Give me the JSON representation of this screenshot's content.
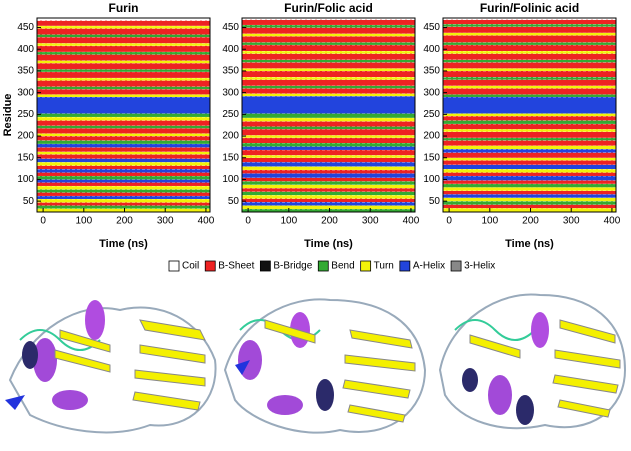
{
  "legend": {
    "names": [
      "Coil",
      "B-Sheet",
      "B-Bridge",
      "Bend",
      "Turn",
      "A-Helix",
      "3-Helix"
    ],
    "colors": [
      "#ffffff",
      "#ee2222",
      "#111111",
      "#33aa33",
      "#f2f20a",
      "#2244dd",
      "#888888"
    ]
  },
  "chart_data": [
    {
      "type": "heatmap",
      "title": "Furin",
      "x_label": "Time (ns)",
      "y_label": "Residue",
      "xlim": [
        -15,
        410
      ],
      "xticks": [
        0,
        100,
        200,
        300,
        400
      ],
      "ylim": [
        25,
        472
      ],
      "yticks": [
        50,
        100,
        150,
        200,
        250,
        300,
        350,
        400,
        450
      ],
      "rows": [
        [
          25,
          33,
          4
        ],
        [
          33,
          40,
          3
        ],
        [
          40,
          47,
          1
        ],
        [
          47,
          55,
          4
        ],
        [
          55,
          62,
          5
        ],
        [
          62,
          70,
          1
        ],
        [
          70,
          77,
          3
        ],
        [
          77,
          85,
          4
        ],
        [
          85,
          93,
          1
        ],
        [
          93,
          100,
          5
        ],
        [
          100,
          108,
          3
        ],
        [
          108,
          116,
          1
        ],
        [
          116,
          124,
          5
        ],
        [
          124,
          132,
          1
        ],
        [
          132,
          140,
          4
        ],
        [
          140,
          148,
          5
        ],
        [
          148,
          158,
          1
        ],
        [
          158,
          164,
          4
        ],
        [
          164,
          174,
          1
        ],
        [
          174,
          182,
          5
        ],
        [
          182,
          190,
          3
        ],
        [
          190,
          200,
          1
        ],
        [
          200,
          206,
          4
        ],
        [
          206,
          218,
          1
        ],
        [
          218,
          224,
          3
        ],
        [
          224,
          236,
          1
        ],
        [
          236,
          244,
          4
        ],
        [
          244,
          252,
          3
        ],
        [
          252,
          290,
          5
        ],
        [
          290,
          296,
          4
        ],
        [
          296,
          308,
          1
        ],
        [
          308,
          314,
          3
        ],
        [
          314,
          328,
          1
        ],
        [
          328,
          334,
          4
        ],
        [
          334,
          348,
          1
        ],
        [
          348,
          354,
          3
        ],
        [
          354,
          368,
          1
        ],
        [
          368,
          374,
          4
        ],
        [
          374,
          388,
          1
        ],
        [
          388,
          394,
          3
        ],
        [
          394,
          408,
          1
        ],
        [
          408,
          414,
          4
        ],
        [
          414,
          428,
          1
        ],
        [
          428,
          434,
          3
        ],
        [
          434,
          448,
          1
        ],
        [
          448,
          454,
          4
        ],
        [
          454,
          466,
          1
        ]
      ]
    },
    {
      "type": "heatmap",
      "title": "Furin/Folic acid",
      "x_label": "Time (ns)",
      "xlim": [
        -15,
        410
      ],
      "xticks": [
        0,
        100,
        200,
        300,
        400
      ],
      "ylim": [
        25,
        472
      ],
      "yticks": [
        50,
        100,
        150,
        200,
        250,
        300,
        350,
        400,
        450
      ],
      "rows": [
        [
          25,
          32,
          3
        ],
        [
          32,
          40,
          4
        ],
        [
          40,
          48,
          5
        ],
        [
          48,
          56,
          1
        ],
        [
          56,
          64,
          4
        ],
        [
          64,
          72,
          3
        ],
        [
          72,
          80,
          1
        ],
        [
          80,
          88,
          4
        ],
        [
          88,
          96,
          3
        ],
        [
          96,
          104,
          1
        ],
        [
          104,
          114,
          5
        ],
        [
          114,
          122,
          1
        ],
        [
          122,
          130,
          4
        ],
        [
          130,
          140,
          5
        ],
        [
          140,
          150,
          1
        ],
        [
          150,
          156,
          4
        ],
        [
          156,
          168,
          1
        ],
        [
          168,
          176,
          5
        ],
        [
          176,
          184,
          3
        ],
        [
          184,
          196,
          1
        ],
        [
          196,
          202,
          4
        ],
        [
          202,
          216,
          1
        ],
        [
          216,
          222,
          3
        ],
        [
          222,
          234,
          1
        ],
        [
          234,
          242,
          4
        ],
        [
          242,
          252,
          3
        ],
        [
          252,
          292,
          5
        ],
        [
          292,
          298,
          4
        ],
        [
          298,
          310,
          1
        ],
        [
          310,
          316,
          3
        ],
        [
          316,
          330,
          1
        ],
        [
          330,
          336,
          4
        ],
        [
          336,
          350,
          1
        ],
        [
          350,
          356,
          4
        ],
        [
          356,
          370,
          1
        ],
        [
          370,
          376,
          3
        ],
        [
          376,
          390,
          1
        ],
        [
          390,
          396,
          4
        ],
        [
          396,
          410,
          1
        ],
        [
          410,
          416,
          3
        ],
        [
          416,
          430,
          1
        ],
        [
          430,
          436,
          4
        ],
        [
          436,
          450,
          1
        ],
        [
          450,
          456,
          3
        ],
        [
          456,
          468,
          1
        ]
      ]
    },
    {
      "type": "heatmap",
      "title": "Furin/Folinic acid",
      "x_label": "Time (ns)",
      "xlim": [
        -15,
        410
      ],
      "xticks": [
        0,
        100,
        200,
        300,
        400
      ],
      "ylim": [
        25,
        472
      ],
      "yticks": [
        50,
        100,
        150,
        200,
        250,
        300,
        350,
        400,
        450
      ],
      "rows": [
        [
          25,
          34,
          4
        ],
        [
          34,
          42,
          1
        ],
        [
          42,
          50,
          3
        ],
        [
          50,
          58,
          4
        ],
        [
          58,
          66,
          5
        ],
        [
          66,
          74,
          1
        ],
        [
          74,
          82,
          4
        ],
        [
          82,
          90,
          3
        ],
        [
          90,
          98,
          1
        ],
        [
          98,
          108,
          5
        ],
        [
          108,
          116,
          1
        ],
        [
          116,
          124,
          4
        ],
        [
          124,
          134,
          5
        ],
        [
          134,
          144,
          1
        ],
        [
          144,
          150,
          4
        ],
        [
          150,
          162,
          1
        ],
        [
          162,
          170,
          5
        ],
        [
          170,
          178,
          4
        ],
        [
          178,
          190,
          1
        ],
        [
          190,
          196,
          3
        ],
        [
          196,
          210,
          1
        ],
        [
          210,
          216,
          4
        ],
        [
          216,
          228,
          1
        ],
        [
          228,
          236,
          3
        ],
        [
          236,
          246,
          1
        ],
        [
          246,
          252,
          4
        ],
        [
          252,
          290,
          5
        ],
        [
          290,
          296,
          3
        ],
        [
          296,
          310,
          1
        ],
        [
          310,
          316,
          4
        ],
        [
          316,
          330,
          1
        ],
        [
          330,
          336,
          3
        ],
        [
          336,
          350,
          1
        ],
        [
          350,
          356,
          4
        ],
        [
          356,
          370,
          1
        ],
        [
          370,
          376,
          3
        ],
        [
          376,
          390,
          1
        ],
        [
          390,
          396,
          4
        ],
        [
          396,
          410,
          1
        ],
        [
          410,
          416,
          3
        ],
        [
          416,
          432,
          1
        ],
        [
          432,
          438,
          4
        ],
        [
          438,
          452,
          1
        ],
        [
          452,
          458,
          3
        ],
        [
          458,
          468,
          1
        ]
      ]
    }
  ]
}
